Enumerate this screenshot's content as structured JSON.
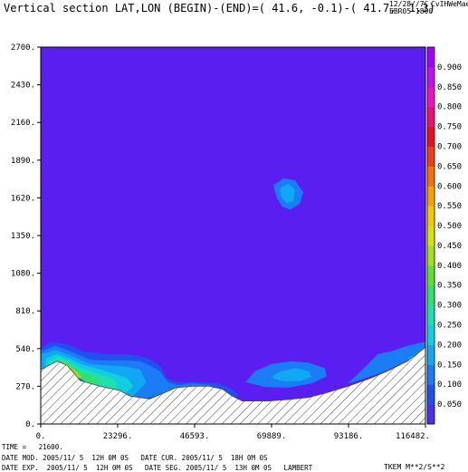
{
  "header": {
    "title": "Vertical section LAT,LON (BEGIN)-(END)=( 41.6, -0.1)-( 41.7,  1.3)",
    "date": "12/28//7C",
    "model": "EBR05 1800",
    "run": "CvIHWeMae"
  },
  "footer": {
    "time": "TIME =   21600.",
    "line1": "DATE MOD. 2005/11/ 5  12H 0M 0S   DATE CUR. 2005/11/ 5  18H 0M 0S",
    "line2": "DATE EXP.  2005/11/ 5  12H 0M 0S   DATE SEG. 2005/11/ 5  13H 0M 0S   LAMBERT",
    "field": "TKEM M**2/S**2"
  },
  "colors": {
    "background_level": "#5a1ff0",
    "terrain_hatch": "#444444"
  },
  "chart_data": {
    "type": "heatmap",
    "title": "Vertical section LAT,LON (BEGIN)-(END)=( 41.6, -0.1)-( 41.7,  1.3)",
    "xlim": [
      0,
      116482
    ],
    "ylim": [
      0,
      2700
    ],
    "xticks": [
      0,
      23296,
      46593,
      69889,
      93186,
      116482
    ],
    "xtick_labels": [
      "0.",
      "23296.",
      "46593.",
      "69889.",
      "93186.",
      "116482."
    ],
    "yticks": [
      0,
      270,
      540,
      810,
      1080,
      1350,
      1620,
      1890,
      2160,
      2430,
      2700
    ],
    "ytick_labels": [
      "0.",
      "270.",
      "540.",
      "810.",
      "1080.",
      "1350.",
      "1620.",
      "1890.",
      "2160.",
      "2430.",
      "2700."
    ],
    "colorbar": {
      "levels": [
        0.05,
        0.1,
        0.15,
        0.2,
        0.25,
        0.3,
        0.35,
        0.4,
        0.45,
        0.5,
        0.55,
        0.6,
        0.65,
        0.7,
        0.75,
        0.8,
        0.85,
        0.9
      ],
      "labels": [
        "0.050",
        "0.100",
        "0.150",
        "0.200",
        "0.250",
        "0.300",
        "0.350",
        "0.400",
        "0.450",
        "0.500",
        "0.550",
        "0.600",
        "0.650",
        "0.700",
        "0.750",
        "0.800",
        "0.850",
        "0.900"
      ],
      "colors": [
        "#4a2ff2",
        "#2050f0",
        "#1a7df5",
        "#10a8f5",
        "#10d0e0",
        "#20e0b0",
        "#30e070",
        "#60e030",
        "#a0e020",
        "#d8e010",
        "#f0c800",
        "#f8a000",
        "#f87000",
        "#f04010",
        "#e81020",
        "#f01070",
        "#f010c0",
        "#c010f0",
        "#a000ff"
      ]
    },
    "terrain": {
      "x": [
        0,
        5000,
        8000,
        12000,
        18000,
        24000,
        27000,
        33000,
        38000,
        41000,
        46000,
        51000,
        55000,
        58000,
        61000,
        64000,
        69000,
        75000,
        81000,
        86000,
        93000,
        100000,
        105000,
        111000,
        116482
      ],
      "y": [
        390,
        450,
        420,
        310,
        270,
        240,
        200,
        180,
        230,
        260,
        270,
        270,
        250,
        200,
        165,
        165,
        165,
        175,
        190,
        220,
        270,
        330,
        380,
        450,
        550
      ]
    },
    "contours": [
      {
        "level": 0.1,
        "points": [
          [
            0,
            520
          ],
          [
            4500,
            560
          ],
          [
            9000,
            520
          ],
          [
            15000,
            460
          ],
          [
            20000,
            455
          ],
          [
            26000,
            455
          ],
          [
            30000,
            450
          ],
          [
            33000,
            420
          ],
          [
            36000,
            380
          ],
          [
            38500,
            300
          ],
          [
            41000,
            280
          ],
          [
            46000,
            290
          ],
          [
            51000,
            280
          ],
          [
            55000,
            240
          ],
          [
            57000,
            190
          ],
          [
            50000,
            185
          ],
          [
            38000,
            220
          ],
          [
            32000,
            185
          ],
          [
            24000,
            200
          ],
          [
            17000,
            275
          ],
          [
            10000,
            370
          ],
          [
            5000,
            420
          ],
          [
            0,
            390
          ]
        ]
      },
      {
        "level": 0.15,
        "points": [
          [
            0,
            500
          ],
          [
            4500,
            530
          ],
          [
            9000,
            490
          ],
          [
            15000,
            430
          ],
          [
            20000,
            420
          ],
          [
            26000,
            410
          ],
          [
            30000,
            390
          ],
          [
            32000,
            300
          ],
          [
            28000,
            200
          ],
          [
            22000,
            210
          ],
          [
            16000,
            280
          ],
          [
            10000,
            370
          ],
          [
            5000,
            420
          ],
          [
            0,
            390
          ]
        ]
      },
      {
        "level": 0.2,
        "points": [
          [
            1500,
            470
          ],
          [
            5000,
            500
          ],
          [
            8500,
            470
          ],
          [
            13000,
            420
          ],
          [
            18000,
            390
          ],
          [
            22000,
            360
          ],
          [
            26000,
            330
          ],
          [
            28000,
            270
          ],
          [
            25000,
            205
          ],
          [
            20000,
            205
          ],
          [
            15000,
            280
          ],
          [
            10000,
            370
          ],
          [
            5000,
            430
          ],
          [
            1500,
            400
          ]
        ]
      },
      {
        "level": 0.25,
        "points": [
          [
            2500,
            450
          ],
          [
            5500,
            480
          ],
          [
            8500,
            450
          ],
          [
            12000,
            400
          ],
          [
            16000,
            370
          ],
          [
            20000,
            340
          ],
          [
            23000,
            300
          ],
          [
            23000,
            250
          ],
          [
            19000,
            230
          ],
          [
            15000,
            290
          ],
          [
            11000,
            360
          ],
          [
            6000,
            420
          ],
          [
            2500,
            410
          ]
        ]
      },
      {
        "level": 0.3,
        "points": [
          [
            4000,
            430
          ],
          [
            6000,
            450
          ],
          [
            8500,
            430
          ],
          [
            11000,
            390
          ],
          [
            14000,
            360
          ],
          [
            17000,
            330
          ],
          [
            18500,
            290
          ],
          [
            15000,
            280
          ],
          [
            11000,
            340
          ],
          [
            7000,
            400
          ],
          [
            4000,
            410
          ]
        ]
      },
      {
        "level": 0.4,
        "points": [
          [
            5000,
            420
          ],
          [
            7000,
            440
          ],
          [
            9000,
            410
          ],
          [
            11000,
            370
          ],
          [
            12500,
            330
          ],
          [
            10000,
            330
          ],
          [
            7000,
            380
          ],
          [
            5000,
            405
          ]
        ]
      },
      {
        "level": 0.6,
        "points": [
          [
            6000,
            410
          ],
          [
            7500,
            425
          ],
          [
            9200,
            395
          ],
          [
            10500,
            360
          ],
          [
            9000,
            350
          ],
          [
            7000,
            385
          ]
        ]
      },
      {
        "level": 0.75,
        "points": [
          [
            6800,
            405
          ],
          [
            7800,
            412
          ],
          [
            9000,
            388
          ],
          [
            9400,
            370
          ],
          [
            8000,
            375
          ],
          [
            7000,
            395
          ]
        ]
      },
      {
        "level": 0.05,
        "points": [
          [
            0,
            540
          ],
          [
            3000,
            590
          ],
          [
            8000,
            570
          ],
          [
            13000,
            520
          ],
          [
            20000,
            500
          ],
          [
            26000,
            500
          ],
          [
            32000,
            475
          ],
          [
            36000,
            420
          ],
          [
            38000,
            330
          ],
          [
            41000,
            300
          ],
          [
            48000,
            300
          ],
          [
            54000,
            290
          ],
          [
            58000,
            250
          ],
          [
            60000,
            205
          ],
          [
            57000,
            175
          ],
          [
            48000,
            180
          ],
          [
            38000,
            200
          ],
          [
            30000,
            180
          ],
          [
            22000,
            190
          ],
          [
            15000,
            260
          ],
          [
            9000,
            360
          ],
          [
            4000,
            430
          ],
          [
            0,
            390
          ]
        ]
      },
      {
        "level": 0.1,
        "points": [
          [
            70500,
            1710
          ],
          [
            73500,
            1760
          ],
          [
            77000,
            1745
          ],
          [
            79500,
            1660
          ],
          [
            78500,
            1580
          ],
          [
            75500,
            1535
          ],
          [
            73000,
            1560
          ],
          [
            71500,
            1620
          ]
        ]
      },
      {
        "level": 0.15,
        "points": [
          [
            72500,
            1690
          ],
          [
            75000,
            1720
          ],
          [
            77000,
            1680
          ],
          [
            76500,
            1600
          ],
          [
            74500,
            1580
          ],
          [
            72800,
            1630
          ]
        ]
      },
      {
        "level": 0.1,
        "points": [
          [
            62000,
            300
          ],
          [
            65000,
            380
          ],
          [
            70000,
            430
          ],
          [
            76000,
            450
          ],
          [
            81000,
            440
          ],
          [
            86000,
            400
          ],
          [
            86500,
            340
          ],
          [
            82000,
            290
          ],
          [
            75000,
            260
          ],
          [
            68000,
            265
          ]
        ]
      },
      {
        "level": 0.15,
        "points": [
          [
            70000,
            340
          ],
          [
            73000,
            380
          ],
          [
            77000,
            400
          ],
          [
            81000,
            380
          ],
          [
            82000,
            340
          ],
          [
            79000,
            310
          ],
          [
            74000,
            305
          ],
          [
            71000,
            320
          ]
        ]
      },
      {
        "level": 0.1,
        "points": [
          [
            102000,
            500
          ],
          [
            106000,
            520
          ],
          [
            111000,
            560
          ],
          [
            116482,
            590
          ],
          [
            116482,
            540
          ],
          [
            111000,
            455
          ],
          [
            105000,
            385
          ],
          [
            101000,
            350
          ],
          [
            96000,
            310
          ],
          [
            93000,
            290
          ],
          [
            97000,
            380
          ]
        ]
      },
      {
        "level": 0.15,
        "points": [
          [
            111000,
            470
          ],
          [
            116482,
            550
          ],
          [
            116482,
            520
          ],
          [
            112000,
            450
          ]
        ]
      }
    ]
  }
}
